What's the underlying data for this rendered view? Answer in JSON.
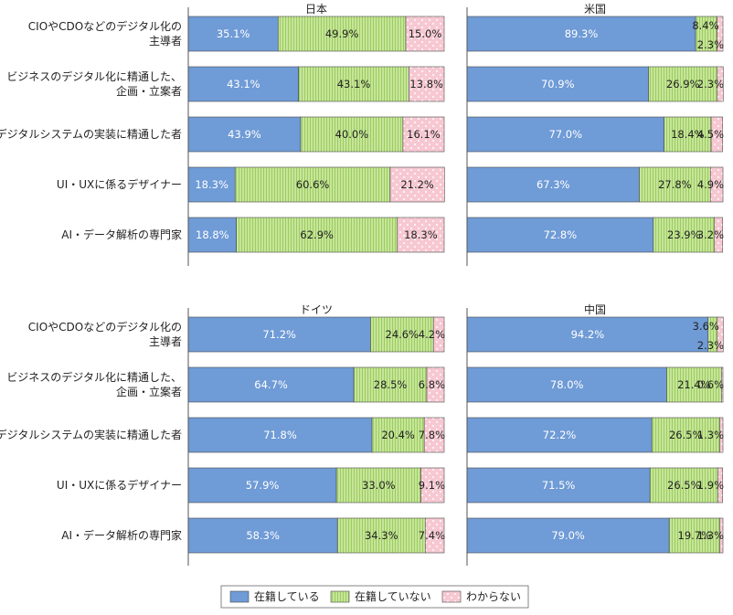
{
  "chart_data": {
    "type": "bar",
    "stacked": true,
    "orientation": "horizontal",
    "percent": true,
    "xlim": [
      0,
      100
    ],
    "grid": false,
    "legend_position": "bottom",
    "categories": [
      [
        "CIOやCDOなどのデジタル化の",
        "主導者"
      ],
      [
        "ビジネスのデジタル化に精通した、",
        "企画・立案者"
      ],
      [
        "デジタルシステムの実装に精通した者"
      ],
      [
        "UI・UXに係るデザイナー"
      ],
      [
        "AI・データ解析の専門家"
      ]
    ],
    "series_names": [
      "在籍している",
      "在籍していない",
      "わからない"
    ],
    "colors": [
      "#6f9bd6",
      "#c6e59a",
      "#f7c8d2"
    ],
    "panels": [
      {
        "title": "日本",
        "values": [
          [
            35.1,
            49.9,
            15.0
          ],
          [
            43.1,
            43.1,
            13.8
          ],
          [
            43.9,
            40.0,
            16.1
          ],
          [
            18.3,
            60.6,
            21.2
          ],
          [
            18.8,
            62.9,
            18.3
          ]
        ],
        "labels": [
          [
            "35.1%",
            "49.9%",
            "15.0%"
          ],
          [
            "43.1%",
            "43.1%",
            "13.8%"
          ],
          [
            "43.9%",
            "40.0%",
            "16.1%"
          ],
          [
            "18.3%",
            "60.6%",
            "21.2%"
          ],
          [
            "18.8%",
            "62.9%",
            "18.3%"
          ]
        ]
      },
      {
        "title": "米国",
        "values": [
          [
            89.3,
            8.4,
            2.3
          ],
          [
            70.9,
            26.9,
            2.3
          ],
          [
            77.0,
            18.4,
            4.5
          ],
          [
            67.3,
            27.8,
            4.9
          ],
          [
            72.8,
            23.9,
            3.2
          ]
        ],
        "labels": [
          [
            "89.3%",
            "8.4%",
            "2.3%"
          ],
          [
            "70.9%",
            "26.9%",
            "2.3%"
          ],
          [
            "77.0%",
            "18.4%",
            "4.5%"
          ],
          [
            "67.3%",
            "27.8%",
            "4.9%"
          ],
          [
            "72.8%",
            "23.9%",
            "3.2%"
          ]
        ]
      },
      {
        "title": "ドイツ",
        "values": [
          [
            71.2,
            24.6,
            4.2
          ],
          [
            64.7,
            28.5,
            6.8
          ],
          [
            71.8,
            20.4,
            7.8
          ],
          [
            57.9,
            33.0,
            9.1
          ],
          [
            58.3,
            34.3,
            7.4
          ]
        ],
        "labels": [
          [
            "71.2%",
            "24.6%",
            "4.2%"
          ],
          [
            "64.7%",
            "28.5%",
            "6.8%"
          ],
          [
            "71.8%",
            "20.4%",
            "7.8%"
          ],
          [
            "57.9%",
            "33.0%",
            "9.1%"
          ],
          [
            "58.3%",
            "34.3%",
            "7.4%"
          ]
        ]
      },
      {
        "title": "中国",
        "values": [
          [
            94.2,
            3.6,
            2.3
          ],
          [
            78.0,
            21.4,
            0.6
          ],
          [
            72.2,
            26.5,
            1.3
          ],
          [
            71.5,
            26.5,
            1.9
          ],
          [
            79.0,
            19.7,
            1.3
          ]
        ],
        "labels": [
          [
            "94.2%",
            "3.6%",
            "2.3%"
          ],
          [
            "78.0%",
            "21.4%",
            "0.6%"
          ],
          [
            "72.2%",
            "26.5%",
            "1.3%"
          ],
          [
            "71.5%",
            "26.5%",
            "1.9%"
          ],
          [
            "79.0%",
            "19.7%",
            "1.3%"
          ]
        ]
      }
    ]
  }
}
